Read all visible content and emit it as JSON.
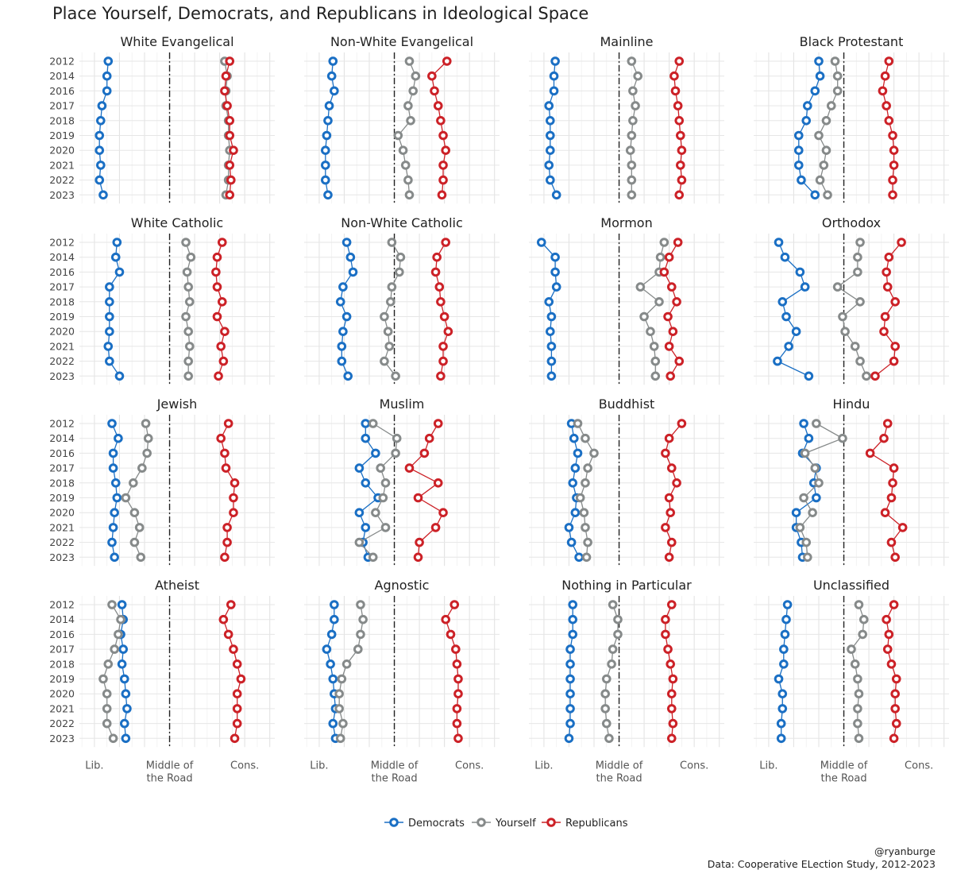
{
  "title": "Place Yourself, Democrats, and Republicans in Ideological Space",
  "caption": [
    "@ryanburge",
    "Data: Cooperative ELection Study, 2012-2023"
  ],
  "chart_data": {
    "type": "line",
    "x_axis": {
      "ticks": [
        {
          "value": 1,
          "label": [
            "Lib."
          ]
        },
        {
          "value": 4,
          "label": [
            "Middle of",
            "the Road"
          ]
        },
        {
          "value": 7,
          "label": [
            "Cons."
          ]
        }
      ],
      "range": [
        0.4,
        8.2
      ],
      "reference_line": 4
    },
    "years": [
      "2012",
      "2014",
      "2016",
      "2017",
      "2018",
      "2019",
      "2020",
      "2021",
      "2022",
      "2023"
    ],
    "series_info": [
      {
        "key": "dem",
        "name": "Democrats",
        "color": "#1a6fc4"
      },
      {
        "key": "you",
        "name": "Yourself",
        "color": "#868a8a"
      },
      {
        "key": "rep",
        "name": "Republicans",
        "color": "#cc2127"
      }
    ],
    "panels": [
      {
        "name": "White Evangelical",
        "dem": [
          1.55,
          1.5,
          1.5,
          1.3,
          1.25,
          1.2,
          1.2,
          1.25,
          1.2,
          1.35
        ],
        "you": [
          6.2,
          6.3,
          6.25,
          6.25,
          6.35,
          6.35,
          6.4,
          6.35,
          6.35,
          6.25
        ],
        "rep": [
          6.4,
          6.25,
          6.2,
          6.3,
          6.4,
          6.4,
          6.55,
          6.4,
          6.45,
          6.4
        ]
      },
      {
        "name": "Non-White Evangelical",
        "dem": [
          1.55,
          1.5,
          1.6,
          1.4,
          1.35,
          1.3,
          1.25,
          1.25,
          1.25,
          1.35
        ],
        "you": [
          4.6,
          4.85,
          4.75,
          4.55,
          4.65,
          4.15,
          4.35,
          4.45,
          4.55,
          4.6
        ],
        "rep": [
          6.1,
          5.5,
          5.6,
          5.75,
          5.85,
          5.95,
          6.05,
          5.95,
          5.95,
          5.9
        ]
      },
      {
        "name": "Mainline",
        "dem": [
          1.45,
          1.4,
          1.4,
          1.2,
          1.25,
          1.25,
          1.25,
          1.2,
          1.25,
          1.5
        ],
        "you": [
          4.5,
          4.75,
          4.55,
          4.65,
          4.55,
          4.5,
          4.45,
          4.5,
          4.5,
          4.5
        ],
        "rep": [
          6.4,
          6.2,
          6.25,
          6.35,
          6.4,
          6.45,
          6.5,
          6.45,
          6.5,
          6.4
        ]
      },
      {
        "name": "Black Protestant",
        "dem": [
          3.0,
          3.05,
          2.85,
          2.55,
          2.5,
          2.2,
          2.2,
          2.2,
          2.3,
          2.85
        ],
        "you": [
          3.65,
          3.75,
          3.75,
          3.5,
          3.3,
          3.0,
          3.3,
          3.2,
          3.05,
          3.35
        ],
        "rep": [
          5.8,
          5.65,
          5.55,
          5.7,
          5.8,
          5.95,
          6.0,
          6.0,
          5.95,
          5.95
        ]
      },
      {
        "name": "White Catholic",
        "dem": [
          1.9,
          1.85,
          2.0,
          1.6,
          1.6,
          1.6,
          1.6,
          1.55,
          1.6,
          2.0
        ],
        "you": [
          4.65,
          4.85,
          4.7,
          4.75,
          4.8,
          4.65,
          4.75,
          4.8,
          4.75,
          4.75
        ],
        "rep": [
          6.1,
          5.9,
          5.85,
          5.9,
          6.1,
          5.9,
          6.2,
          6.05,
          6.15,
          5.95
        ]
      },
      {
        "name": "Non-White Catholic",
        "dem": [
          2.1,
          2.25,
          2.35,
          1.95,
          1.85,
          2.1,
          1.95,
          1.9,
          1.9,
          2.15
        ],
        "you": [
          3.9,
          4.25,
          4.2,
          3.9,
          3.85,
          3.6,
          3.75,
          3.8,
          3.6,
          4.05
        ],
        "rep": [
          6.05,
          5.7,
          5.65,
          5.8,
          5.85,
          6.0,
          6.15,
          5.95,
          5.95,
          5.85
        ]
      },
      {
        "name": "Mormon",
        "dem": [
          0.9,
          1.45,
          1.45,
          1.5,
          1.2,
          1.3,
          1.25,
          1.3,
          1.3,
          1.3
        ],
        "you": [
          5.8,
          5.65,
          5.6,
          4.85,
          5.6,
          5.0,
          5.25,
          5.4,
          5.45,
          5.45
        ],
        "rep": [
          6.35,
          6.0,
          5.8,
          6.1,
          6.3,
          5.95,
          6.15,
          6.0,
          6.4,
          6.05
        ]
      },
      {
        "name": "Orthodox",
        "dem": [
          1.4,
          1.65,
          2.25,
          2.45,
          1.55,
          1.7,
          2.1,
          1.8,
          1.35,
          2.6
        ],
        "you": [
          4.65,
          4.55,
          4.55,
          3.75,
          4.65,
          3.95,
          4.05,
          4.45,
          4.65,
          4.9
        ],
        "rep": [
          6.3,
          5.8,
          5.7,
          5.75,
          6.05,
          5.65,
          5.6,
          6.05,
          6.0,
          5.25
        ]
      },
      {
        "name": "Jewish",
        "dem": [
          1.7,
          1.95,
          1.75,
          1.75,
          1.85,
          1.9,
          1.8,
          1.75,
          1.7,
          1.8
        ],
        "you": [
          3.05,
          3.15,
          3.1,
          2.9,
          2.55,
          2.25,
          2.6,
          2.8,
          2.6,
          2.85
        ],
        "rep": [
          6.35,
          6.05,
          6.2,
          6.25,
          6.6,
          6.55,
          6.55,
          6.3,
          6.3,
          6.2
        ]
      },
      {
        "name": "Muslim",
        "dem": [
          2.85,
          2.85,
          3.25,
          2.6,
          2.85,
          3.35,
          2.6,
          2.85,
          2.75,
          2.95
        ],
        "you": [
          3.15,
          4.1,
          4.05,
          3.45,
          3.65,
          3.55,
          3.25,
          3.65,
          2.6,
          3.15
        ],
        "rep": [
          5.75,
          5.4,
          5.2,
          4.6,
          5.75,
          4.95,
          5.95,
          5.65,
          5.0,
          4.95
        ]
      },
      {
        "name": "Buddhist",
        "dem": [
          2.1,
          2.2,
          2.35,
          2.25,
          2.15,
          2.3,
          2.25,
          2.0,
          2.1,
          2.4
        ],
        "you": [
          2.35,
          2.65,
          3.0,
          2.75,
          2.65,
          2.45,
          2.6,
          2.65,
          2.75,
          2.7
        ],
        "rep": [
          6.5,
          6.0,
          5.85,
          6.1,
          6.3,
          6.0,
          6.05,
          5.85,
          6.1,
          6.0
        ]
      },
      {
        "name": "Hindu",
        "dem": [
          2.4,
          2.6,
          2.35,
          2.9,
          2.8,
          2.9,
          2.1,
          2.1,
          2.3,
          2.35
        ],
        "you": [
          2.9,
          3.95,
          2.45,
          2.85,
          3.0,
          2.4,
          2.75,
          2.25,
          2.5,
          2.55
        ],
        "rep": [
          5.75,
          5.6,
          5.05,
          6.0,
          5.95,
          5.9,
          5.65,
          6.35,
          5.9,
          6.05
        ]
      },
      {
        "name": "Atheist",
        "dem": [
          2.1,
          2.15,
          2.05,
          2.15,
          2.1,
          2.2,
          2.25,
          2.3,
          2.2,
          2.25
        ],
        "you": [
          1.7,
          2.05,
          1.95,
          1.8,
          1.55,
          1.35,
          1.5,
          1.5,
          1.5,
          1.75
        ],
        "rep": [
          6.45,
          6.15,
          6.35,
          6.55,
          6.7,
          6.85,
          6.7,
          6.7,
          6.7,
          6.6
        ]
      },
      {
        "name": "Agnostic",
        "dem": [
          1.6,
          1.6,
          1.5,
          1.3,
          1.45,
          1.55,
          1.6,
          1.65,
          1.55,
          1.65
        ],
        "you": [
          2.65,
          2.75,
          2.65,
          2.55,
          2.1,
          1.9,
          1.8,
          1.8,
          1.95,
          1.85
        ],
        "rep": [
          6.4,
          6.05,
          6.25,
          6.45,
          6.5,
          6.55,
          6.55,
          6.5,
          6.5,
          6.55
        ]
      },
      {
        "name": "Nothing in Particular",
        "dem": [
          2.15,
          2.15,
          2.15,
          2.05,
          2.05,
          2.05,
          2.05,
          2.05,
          2.05,
          2.0
        ],
        "you": [
          3.75,
          3.95,
          3.95,
          3.75,
          3.7,
          3.5,
          3.45,
          3.45,
          3.5,
          3.6
        ],
        "rep": [
          6.1,
          5.85,
          5.85,
          5.95,
          6.05,
          6.15,
          6.1,
          6.1,
          6.15,
          6.1
        ]
      },
      {
        "name": "Unclassified",
        "dem": [
          1.75,
          1.7,
          1.65,
          1.6,
          1.6,
          1.4,
          1.55,
          1.55,
          1.5,
          1.5
        ],
        "you": [
          4.6,
          4.8,
          4.75,
          4.3,
          4.45,
          4.55,
          4.6,
          4.55,
          4.55,
          4.6
        ],
        "rep": [
          6.0,
          5.7,
          5.8,
          5.75,
          5.9,
          6.1,
          6.05,
          6.05,
          6.1,
          6.0
        ]
      }
    ]
  }
}
